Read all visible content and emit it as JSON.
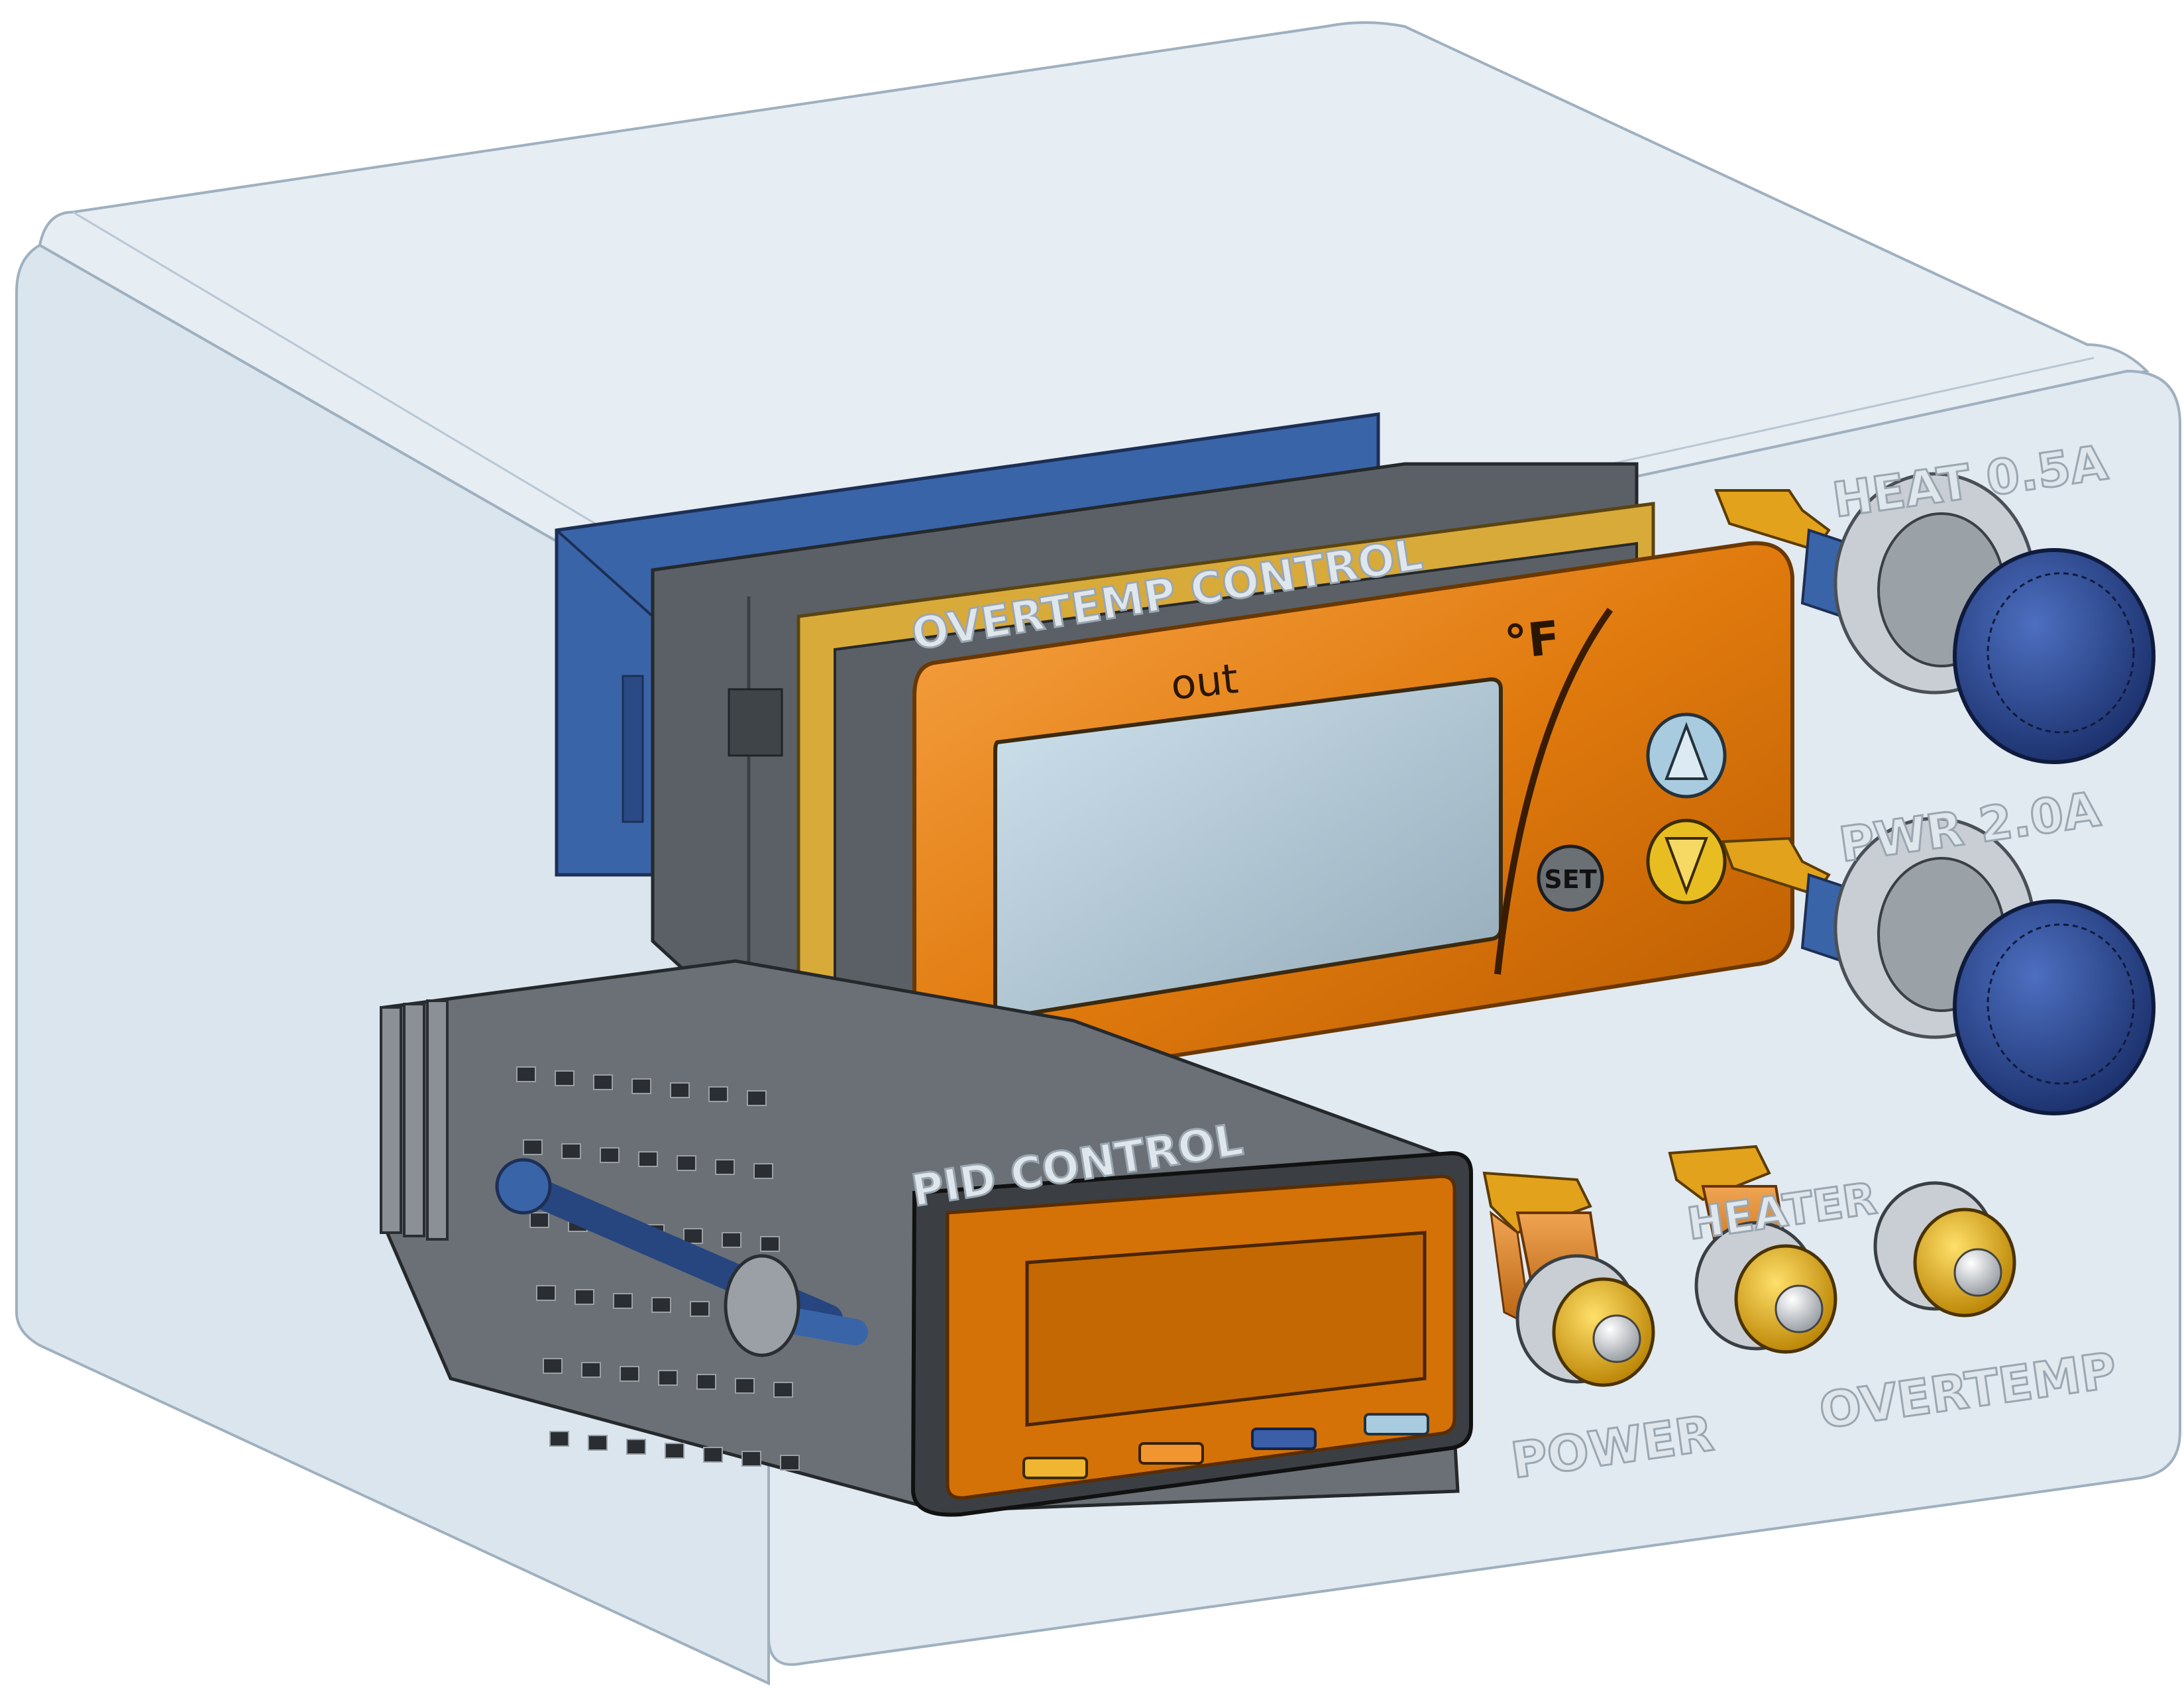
{
  "enclosure_labels": {
    "overtemp_control": "OVERTEMP CONTROL",
    "pid_control": "PID CONTROL",
    "heat_fuse": "HEAT 0.5A",
    "pwr_fuse": "PWR 2.0A",
    "heater": "HEATER",
    "power": "POWER",
    "overtemp": "OVERTEMP"
  },
  "overtemp_controller": {
    "display_label": "out",
    "unit_label": "°F",
    "set_button": "SET"
  },
  "colors": {
    "enclosure": "#dfe8f0",
    "controller_orange": "#e07a0e",
    "pid_orange": "#d47208",
    "housing_blue": "#3a64a8",
    "fuse_cap_blue": "#23428a",
    "bezel_yellow": "#d8aa3a",
    "grey_body": "#5a6066",
    "lamp_gold": "#e7b51a"
  },
  "icons": {
    "up": "triangle-up-icon",
    "down": "triangle-down-icon"
  }
}
